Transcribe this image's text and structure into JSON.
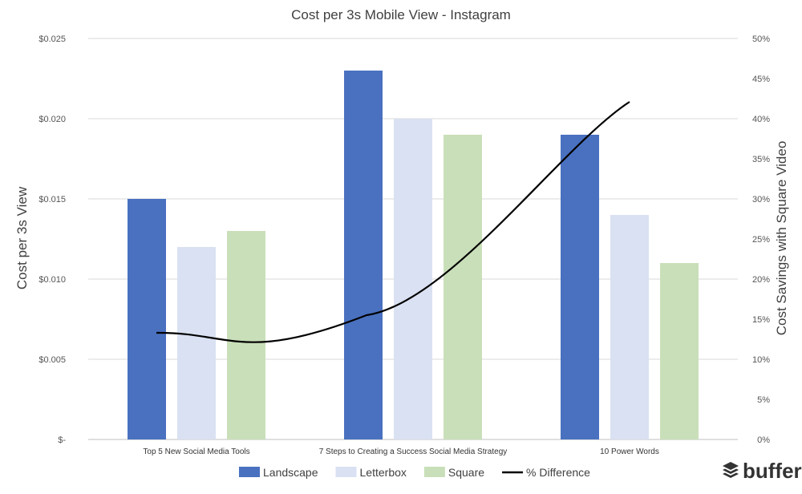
{
  "chart_data": {
    "type": "bar",
    "title": "Cost per 3s Mobile View - Instagram",
    "ylabel": "Cost per 3s View",
    "y2label": "Cost Savings with Square Video",
    "ylim": [
      0,
      0.025
    ],
    "y2lim": [
      0,
      0.5
    ],
    "y_ticks": [
      "$-",
      "$0.005",
      "$0.010",
      "$0.015",
      "$0.020",
      "$0.025"
    ],
    "y2_ticks": [
      "0%",
      "5%",
      "10%",
      "15%",
      "20%",
      "25%",
      "30%",
      "35%",
      "40%",
      "45%",
      "50%"
    ],
    "categories": [
      "Top 5 New Social Media Tools",
      "7 Steps to Creating a Success Social Media Strategy",
      "10 Power Words"
    ],
    "series": [
      {
        "name": "Landscape",
        "type": "bar",
        "axis": "left",
        "color": "#4a71c0",
        "values": [
          0.015,
          0.023,
          0.019
        ]
      },
      {
        "name": "Letterbox",
        "type": "bar",
        "axis": "left",
        "color": "#d9e1f2",
        "values": [
          0.012,
          0.02,
          0.014
        ]
      },
      {
        "name": "Square",
        "type": "bar",
        "axis": "left",
        "color": "#c9dfb9",
        "values": [
          0.013,
          0.019,
          0.011
        ]
      },
      {
        "name": "% Difference",
        "type": "line",
        "axis": "right",
        "color": "#000000",
        "values": [
          0.133,
          0.155,
          0.421
        ]
      }
    ],
    "grid": true,
    "legend_position": "bottom"
  },
  "brand": {
    "name": "buffer",
    "icon": "buffer-stack-icon"
  }
}
